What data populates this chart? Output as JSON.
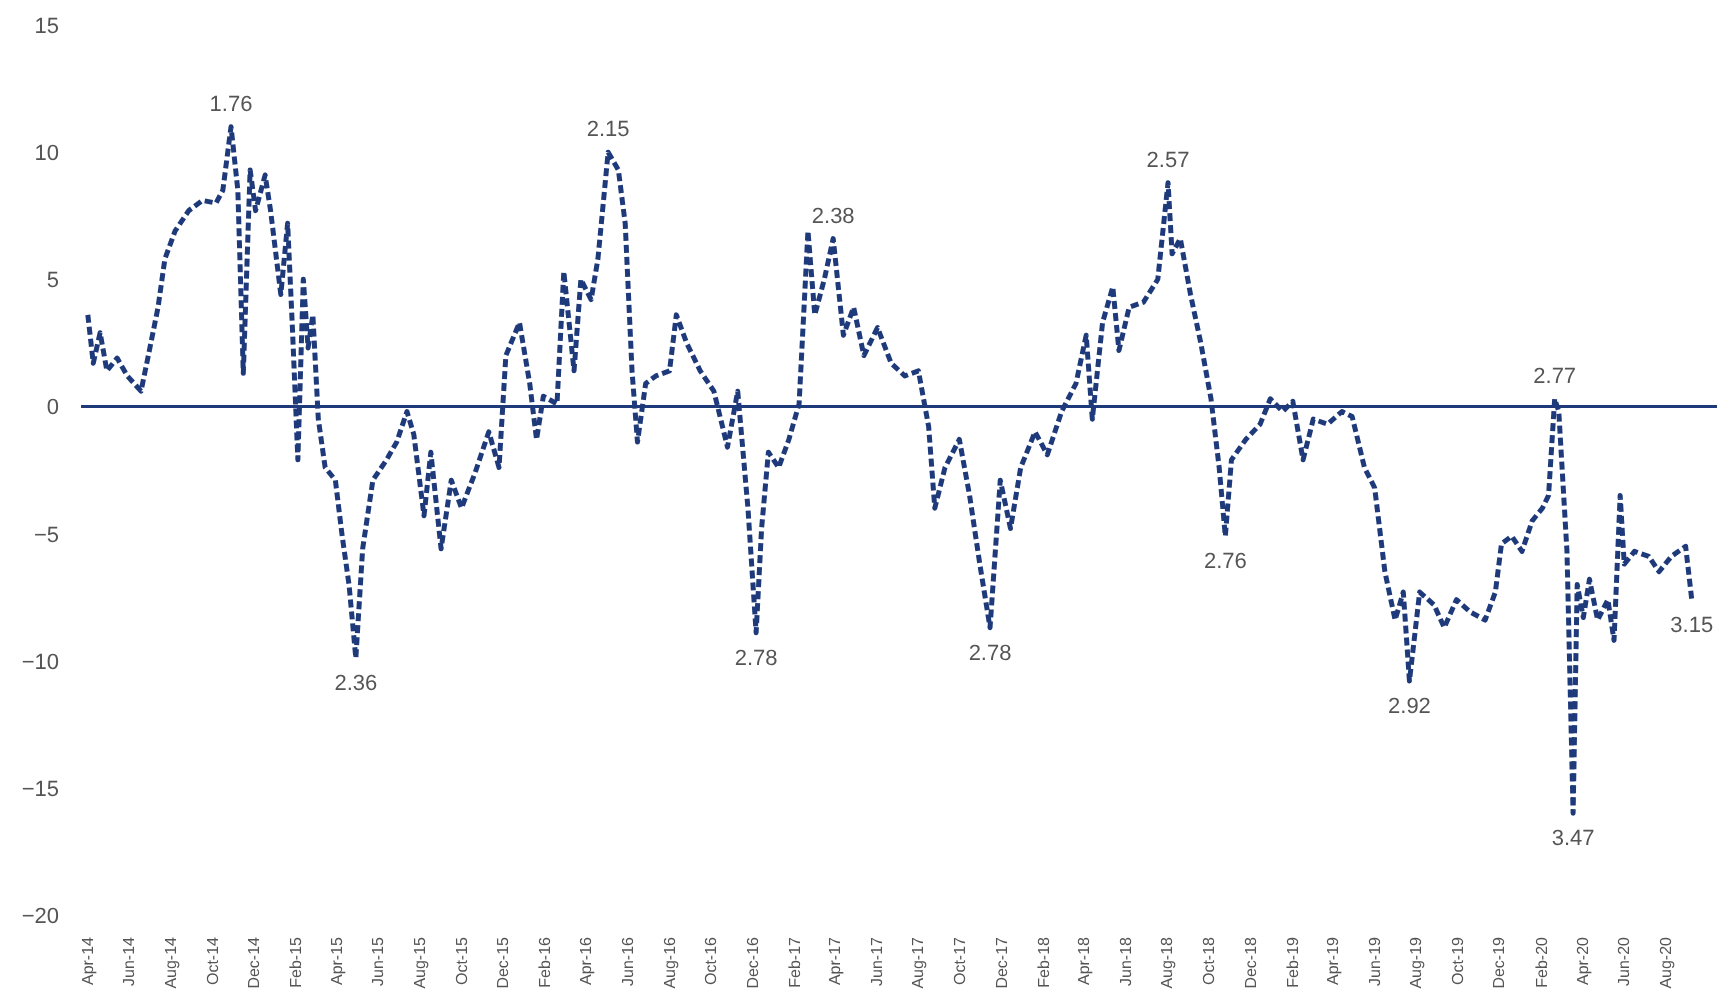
{
  "chart_data": {
    "type": "line",
    "line_style": "dashed",
    "marker": "none",
    "grid": false,
    "xlim": [
      "2014-03-22",
      "2020-10-15"
    ],
    "ylim": [
      -20,
      15
    ],
    "yticks": [
      -20,
      -15,
      -10,
      -5,
      0,
      5,
      10,
      15
    ],
    "xticks": [
      {
        "value": "2014-04",
        "label": "Apr-14"
      },
      {
        "value": "2014-06",
        "label": "Jun-14"
      },
      {
        "value": "2014-08",
        "label": "Aug-14"
      },
      {
        "value": "2014-10",
        "label": "Oct-14"
      },
      {
        "value": "2014-12",
        "label": "Dec-14"
      },
      {
        "value": "2015-02",
        "label": "Feb-15"
      },
      {
        "value": "2015-04",
        "label": "Apr-15"
      },
      {
        "value": "2015-06",
        "label": "Jun-15"
      },
      {
        "value": "2015-08",
        "label": "Aug-15"
      },
      {
        "value": "2015-10",
        "label": "Oct-15"
      },
      {
        "value": "2015-12",
        "label": "Dec-15"
      },
      {
        "value": "2016-02",
        "label": "Feb-16"
      },
      {
        "value": "2016-04",
        "label": "Apr-16"
      },
      {
        "value": "2016-06",
        "label": "Jun-16"
      },
      {
        "value": "2016-08",
        "label": "Aug-16"
      },
      {
        "value": "2016-10",
        "label": "Oct-16"
      },
      {
        "value": "2016-12",
        "label": "Dec-16"
      },
      {
        "value": "2017-02",
        "label": "Feb-17"
      },
      {
        "value": "2017-04",
        "label": "Apr-17"
      },
      {
        "value": "2017-06",
        "label": "Jun-17"
      },
      {
        "value": "2017-08",
        "label": "Aug-17"
      },
      {
        "value": "2017-10",
        "label": "Oct-17"
      },
      {
        "value": "2017-12",
        "label": "Dec-17"
      },
      {
        "value": "2018-02",
        "label": "Feb-18"
      },
      {
        "value": "2018-04",
        "label": "Apr-18"
      },
      {
        "value": "2018-06",
        "label": "Jun-18"
      },
      {
        "value": "2018-08",
        "label": "Aug-18"
      },
      {
        "value": "2018-10",
        "label": "Oct-18"
      },
      {
        "value": "2018-12",
        "label": "Dec-18"
      },
      {
        "value": "2019-02",
        "label": "Feb-19"
      },
      {
        "value": "2019-04",
        "label": "Apr-19"
      },
      {
        "value": "2019-06",
        "label": "Jun-19"
      },
      {
        "value": "2019-08",
        "label": "Aug-19"
      },
      {
        "value": "2019-10",
        "label": "Oct-19"
      },
      {
        "value": "2019-12",
        "label": "Dec-19"
      },
      {
        "value": "2020-02",
        "label": "Feb-20"
      },
      {
        "value": "2020-04",
        "label": "Apr-20"
      },
      {
        "value": "2020-06",
        "label": "Jun-20"
      },
      {
        "value": "2020-08",
        "label": "Aug-20"
      }
    ],
    "ref_lines": [
      {
        "axis": "y",
        "value": 0,
        "color": "#1f3a7a",
        "line_style": "solid"
      }
    ],
    "annotations": [
      {
        "text": "1.76",
        "x": "2014-10-28",
        "y": 11.0
      },
      {
        "text": "2.15",
        "x": "2016-05-03",
        "y": 10.0
      },
      {
        "text": "2.38",
        "x": "2017-03-29",
        "y": 6.6
      },
      {
        "text": "2.57",
        "x": "2018-08-02",
        "y": 8.8
      },
      {
        "text": "2.77",
        "x": "2020-02-20",
        "y": 0.3
      },
      {
        "text": "2.36",
        "x": "2015-04-29",
        "y": -9.9
      },
      {
        "text": "2.78",
        "x": "2016-12-06",
        "y": -8.9
      },
      {
        "text": "2.78",
        "x": "2017-11-14",
        "y": -8.7
      },
      {
        "text": "2.76",
        "x": "2018-10-25",
        "y": -5.1
      },
      {
        "text": "2.92",
        "x": "2019-07-22",
        "y": -10.8
      },
      {
        "text": "3.47",
        "x": "2020-03-18",
        "y": -16.0
      },
      {
        "text": "3.15",
        "x": "2020-09-08",
        "y": -7.6
      }
    ],
    "series": [
      {
        "color": "#1f3a7a",
        "x": [
          "2014-04-01",
          "2014-04-09",
          "2014-04-19",
          "2014-04-29",
          "2014-05-14",
          "2014-05-29",
          "2014-06-18",
          "2014-06-28",
          "2014-07-13",
          "2014-07-23",
          "2014-08-07",
          "2014-08-27",
          "2014-09-16",
          "2014-10-06",
          "2014-10-16",
          "2014-10-28",
          "2014-11-07",
          "2014-11-15",
          "2014-11-25",
          "2014-12-03",
          "2014-12-17",
          "2014-12-25",
          "2015-01-09",
          "2015-01-19",
          "2015-01-26",
          "2015-02-03",
          "2015-02-11",
          "2015-02-18",
          "2015-02-25",
          "2015-03-05",
          "2015-03-15",
          "2015-03-30",
          "2015-04-09",
          "2015-04-19",
          "2015-04-29",
          "2015-05-09",
          "2015-05-24",
          "2015-06-13",
          "2015-06-28",
          "2015-07-13",
          "2015-07-23",
          "2015-08-07",
          "2015-08-17",
          "2015-09-01",
          "2015-09-16",
          "2015-10-01",
          "2015-10-21",
          "2015-11-10",
          "2015-11-25",
          "2015-12-05",
          "2015-12-25",
          "2016-01-09",
          "2016-01-19",
          "2016-01-29",
          "2016-02-18",
          "2016-02-28",
          "2016-03-14",
          "2016-03-24",
          "2016-04-08",
          "2016-04-18",
          "2016-05-03",
          "2016-05-18",
          "2016-05-28",
          "2016-06-07",
          "2016-06-15",
          "2016-06-27",
          "2016-07-12",
          "2016-08-01",
          "2016-08-11",
          "2016-08-26",
          "2016-09-15",
          "2016-10-05",
          "2016-10-25",
          "2016-11-09",
          "2016-11-24",
          "2016-12-06",
          "2016-12-14",
          "2016-12-24",
          "2017-01-08",
          "2017-01-23",
          "2017-02-07",
          "2017-02-20",
          "2017-03-02",
          "2017-03-16",
          "2017-03-29",
          "2017-04-13",
          "2017-04-28",
          "2017-05-13",
          "2017-06-02",
          "2017-06-22",
          "2017-07-12",
          "2017-08-01",
          "2017-08-16",
          "2017-08-25",
          "2017-09-09",
          "2017-09-30",
          "2017-10-15",
          "2017-10-30",
          "2017-11-14",
          "2017-11-29",
          "2017-12-14",
          "2017-12-29",
          "2018-01-19",
          "2018-02-06",
          "2018-02-27",
          "2018-03-20",
          "2018-04-04",
          "2018-04-13",
          "2018-04-28",
          "2018-05-13",
          "2018-05-22",
          "2018-06-06",
          "2018-06-27",
          "2018-07-18",
          "2018-08-02",
          "2018-08-08",
          "2018-08-20",
          "2018-09-04",
          "2018-09-19",
          "2018-10-04",
          "2018-10-16",
          "2018-10-25",
          "2018-11-03",
          "2018-11-24",
          "2018-12-15",
          "2018-12-30",
          "2019-01-17",
          "2019-02-01",
          "2019-02-16",
          "2019-03-03",
          "2019-03-24",
          "2019-04-14",
          "2019-04-29",
          "2019-05-17",
          "2019-06-01",
          "2019-06-16",
          "2019-07-01",
          "2019-07-13",
          "2019-07-22",
          "2019-08-06",
          "2019-08-27",
          "2019-09-11",
          "2019-09-29",
          "2019-10-20",
          "2019-11-10",
          "2019-11-25",
          "2019-12-04",
          "2019-12-19",
          "2020-01-03",
          "2020-01-18",
          "2020-02-02",
          "2020-02-11",
          "2020-02-20",
          "2020-02-26",
          "2020-03-09",
          "2020-03-18",
          "2020-03-24",
          "2020-04-02",
          "2020-04-11",
          "2020-04-23",
          "2020-05-08",
          "2020-05-17",
          "2020-05-26",
          "2020-06-01",
          "2020-06-16",
          "2020-07-07",
          "2020-07-22",
          "2020-08-09",
          "2020-08-30",
          "2020-09-08"
        ],
        "values": [
          3.6,
          1.7,
          2.9,
          1.4,
          1.9,
          1.2,
          0.6,
          1.9,
          3.9,
          5.8,
          6.9,
          7.7,
          8.1,
          8.0,
          8.5,
          11.0,
          8.5,
          1.3,
          9.3,
          7.7,
          9.1,
          7.7,
          4.4,
          7.2,
          3.1,
          -2.1,
          5.0,
          2.3,
          3.6,
          -0.5,
          -2.4,
          -2.9,
          -5.1,
          -7.0,
          -9.9,
          -5.6,
          -2.9,
          -2.1,
          -1.4,
          -0.2,
          -1.1,
          -4.3,
          -1.8,
          -5.6,
          -2.9,
          -4.0,
          -2.6,
          -1.0,
          -2.4,
          2.0,
          3.3,
          0.9,
          -1.3,
          0.4,
          0.1,
          5.3,
          1.4,
          5.0,
          4.2,
          5.8,
          10.0,
          9.3,
          7.2,
          1.4,
          -1.4,
          0.9,
          1.2,
          1.4,
          3.6,
          2.5,
          1.4,
          0.6,
          -1.6,
          0.6,
          -4.0,
          -8.9,
          -4.8,
          -1.8,
          -2.4,
          -1.3,
          0.1,
          6.9,
          3.6,
          5.0,
          6.6,
          2.8,
          3.9,
          2.0,
          3.1,
          1.7,
          1.2,
          1.4,
          -0.8,
          -4.0,
          -2.4,
          -1.3,
          -3.5,
          -6.2,
          -8.7,
          -2.9,
          -4.8,
          -2.4,
          -1.0,
          -1.9,
          -0.2,
          0.9,
          2.8,
          -0.5,
          3.3,
          4.7,
          2.2,
          3.9,
          4.1,
          5.0,
          8.8,
          6.0,
          6.6,
          4.4,
          2.5,
          0.3,
          -2.4,
          -5.1,
          -2.1,
          -1.3,
          -0.7,
          0.3,
          -0.2,
          0.2,
          -2.1,
          -0.5,
          -0.7,
          -0.2,
          -0.4,
          -2.4,
          -3.2,
          -6.5,
          -8.4,
          -7.3,
          -10.8,
          -7.3,
          -7.8,
          -8.7,
          -7.6,
          -8.1,
          -8.4,
          -7.3,
          -5.4,
          -5.1,
          -5.7,
          -4.5,
          -4.0,
          -3.5,
          0.3,
          -0.2,
          -5.7,
          -16.0,
          -7.0,
          -8.3,
          -6.8,
          -8.4,
          -7.6,
          -9.2,
          -3.5,
          -6.2,
          -5.7,
          -5.9,
          -6.5,
          -5.9,
          -5.5,
          -7.6
        ]
      }
    ]
  }
}
